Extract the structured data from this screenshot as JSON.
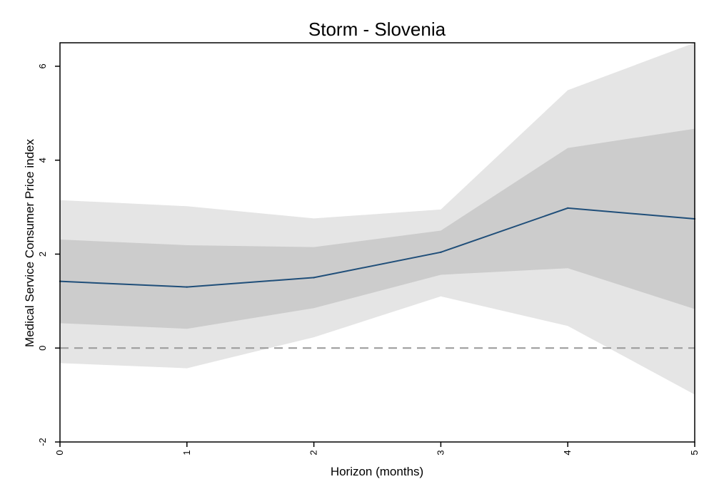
{
  "chart_data": {
    "type": "line",
    "title": "Storm - Slovenia",
    "xlabel": "Horizon (months)",
    "ylabel": "Medical Service Consumer Price index",
    "x": [
      0,
      1,
      2,
      3,
      4,
      5
    ],
    "x_ticks": [
      "0",
      "1",
      "2",
      "3",
      "4",
      "5"
    ],
    "y_ticks": [
      "-2",
      "0",
      "2",
      "4",
      "6"
    ],
    "xlim": [
      0,
      5
    ],
    "ylim": [
      -2,
      6.5
    ],
    "grid": false,
    "zero_line": {
      "y": 0,
      "style": "dashed",
      "color": "#999999"
    },
    "series": [
      {
        "values": [
          1.42,
          1.3,
          1.5,
          2.04,
          2.98,
          2.75
        ],
        "color": "#1f4e79"
      }
    ],
    "bands": [
      {
        "lower": [
          -0.32,
          -0.43,
          0.23,
          1.1,
          0.47,
          -0.99
        ],
        "upper": [
          3.15,
          3.02,
          2.76,
          2.95,
          5.49,
          6.5
        ],
        "color": "#e5e5e5"
      },
      {
        "lower": [
          0.53,
          0.41,
          0.85,
          1.56,
          1.7,
          0.83
        ],
        "upper": [
          2.31,
          2.19,
          2.15,
          2.5,
          4.26,
          4.67
        ],
        "color": "#cccccc"
      }
    ]
  }
}
